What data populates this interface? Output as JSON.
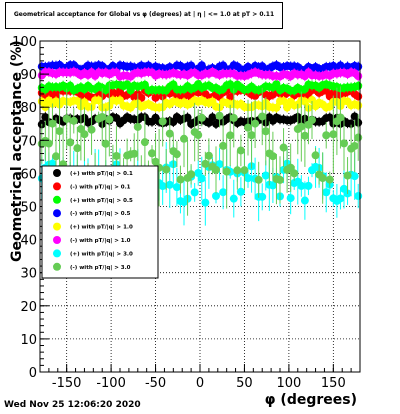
{
  "chart_data": {
    "type": "scatter",
    "title": "Geometrical acceptance for Global vs φ (degrees) at | η | <= 1.0 at pT > 0.11",
    "xlabel": "φ (degrees)",
    "ylabel": "Geometrical acceptance (%)",
    "xlim": [
      -180,
      180
    ],
    "ylim": [
      0,
      100
    ],
    "xticks": [
      -150,
      -100,
      -50,
      0,
      50,
      100,
      150
    ],
    "yticks": [
      0,
      10,
      20,
      30,
      40,
      50,
      60,
      70,
      80,
      90,
      100
    ],
    "grid": true,
    "legend_position": "left-middle",
    "series": [
      {
        "name": "(+) with pT/|q| > 0.1",
        "color": "#000000",
        "level": 76,
        "spread": 1.2
      },
      {
        "name": "(-) with pT/|q| > 0.1",
        "color": "#ff0000",
        "level": 84,
        "spread": 1.2
      },
      {
        "name": "(+) with pT/|q| > 0.5",
        "color": "#00ff00",
        "level": 86,
        "spread": 1.0
      },
      {
        "name": "(-) with pT/|q| > 0.5",
        "color": "#0000ff",
        "level": 92,
        "spread": 0.8
      },
      {
        "name": "(+) with pT/|q| > 1.0",
        "color": "#ffff00",
        "level": 81,
        "spread": 1.2
      },
      {
        "name": "(-) with pT/|q| > 1.0",
        "color": "#ff00ff",
        "level": 90,
        "spread": 0.8
      },
      {
        "name": "(+) with pT/|q| > 3.0",
        "color": "#00ffff",
        "level": 57,
        "spread": 6
      },
      {
        "name": "(-) with pT/|q| > 3.0",
        "color": "#66cc55",
        "level": 68,
        "spread": 10
      }
    ]
  },
  "footer": {
    "timestamp": "Wed Nov 25 12:06:20 2020"
  }
}
